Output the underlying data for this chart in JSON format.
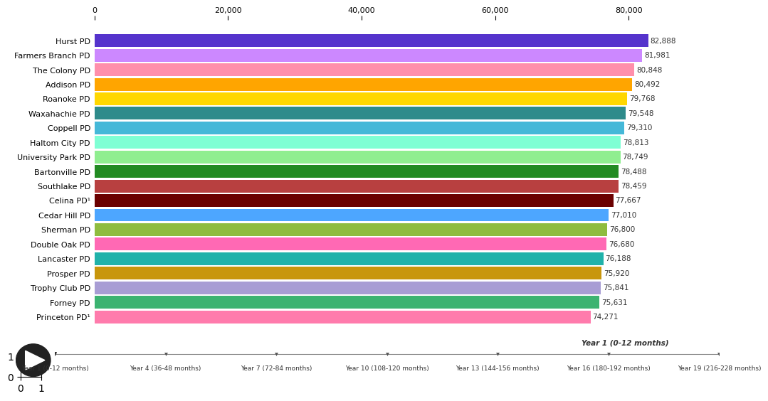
{
  "categories": [
    "Princeton PD¹",
    "Forney PD",
    "Trophy Club PD",
    "Prosper PD",
    "Lancaster PD",
    "Double Oak PD",
    "Sherman PD",
    "Cedar Hill PD",
    "Celina PD¹",
    "Southlake PD",
    "Bartonville PD",
    "University Park PD",
    "Haltom City PD",
    "Coppell PD",
    "Waxahachie PD",
    "Roanoke PD",
    "Addison PD",
    "The Colony PD",
    "Farmers Branch PD",
    "Hurst PD"
  ],
  "values": [
    74271,
    75631,
    75841,
    75920,
    76188,
    76680,
    76800,
    77010,
    77667,
    78459,
    78488,
    78749,
    78813,
    79310,
    79548,
    79768,
    80492,
    80848,
    81981,
    82888
  ],
  "colors": [
    "#FF7BAC",
    "#3CB371",
    "#A89DD4",
    "#C8960C",
    "#20B2AA",
    "#FF69B4",
    "#8FBC3F",
    "#4DA6FF",
    "#6B0000",
    "#B84040",
    "#228B22",
    "#90EE90",
    "#7FFFD4",
    "#45B8D8",
    "#2E8B8B",
    "#FFD700",
    "#FFA500",
    "#FF8FAB",
    "#CC88FF",
    "#5533CC"
  ],
  "xlim": [
    0,
    86000
  ],
  "xticks": [
    0,
    20000,
    40000,
    60000,
    80000
  ],
  "xtick_labels": [
    "0",
    "20,000",
    "40,000",
    "60,000",
    "80,000"
  ],
  "annotation_label": "Year 1 (0-12 months)",
  "timeline_labels": [
    "Year 1 (0-12 months)",
    "Year 4 (36-48 months)",
    "Year 7 (72-84 months)",
    "Year 10 (108-120 months)",
    "Year 13 (144-156 months)",
    "Year 16 (180-192 months)",
    "Year 19 (216-228 months)"
  ],
  "background_color": "#FFFFFF",
  "bar_height": 0.88,
  "value_fontsize": 7.5,
  "label_fontsize": 8,
  "tick_fontsize": 8
}
